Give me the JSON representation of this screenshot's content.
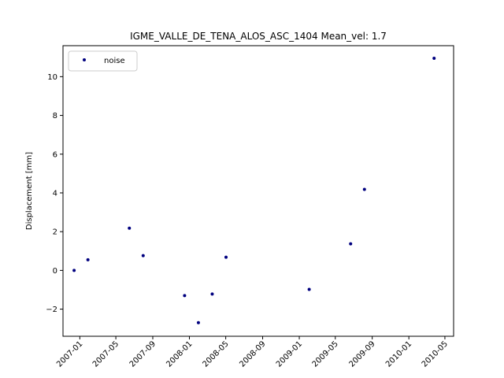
{
  "chart_data": {
    "type": "scatter",
    "title": "IGME_VALLE_DE_TENA_ALOS_ASC_1404    Mean_vel: 1.7",
    "xlabel": "",
    "ylabel": "Displacement [mm]",
    "xlim": [
      "2006-11-06",
      "2010-05-30"
    ],
    "ylim": [
      -3.4,
      11.6
    ],
    "x_ticks": [
      "2007-01",
      "2007-05",
      "2007-09",
      "2008-01",
      "2008-05",
      "2008-09",
      "2009-01",
      "2009-05",
      "2009-09",
      "2010-01",
      "2010-05"
    ],
    "y_ticks": [
      -2,
      0,
      2,
      4,
      6,
      8,
      10
    ],
    "grid": false,
    "legend_position": "top-left",
    "series": [
      {
        "name": "noise",
        "color": "#00007f",
        "marker": "dot",
        "points": [
          {
            "x": "2006-12-13",
            "y": 0.0
          },
          {
            "x": "2007-01-28",
            "y": 0.55
          },
          {
            "x": "2007-06-15",
            "y": 2.18
          },
          {
            "x": "2007-07-31",
            "y": 0.76
          },
          {
            "x": "2007-12-16",
            "y": -1.3
          },
          {
            "x": "2008-01-31",
            "y": -2.7
          },
          {
            "x": "2008-03-17",
            "y": -1.22
          },
          {
            "x": "2008-05-02",
            "y": 0.68
          },
          {
            "x": "2009-02-03",
            "y": -0.98
          },
          {
            "x": "2009-06-21",
            "y": 1.37
          },
          {
            "x": "2009-08-06",
            "y": 4.18
          },
          {
            "x": "2010-03-26",
            "y": 10.95
          }
        ]
      }
    ]
  }
}
